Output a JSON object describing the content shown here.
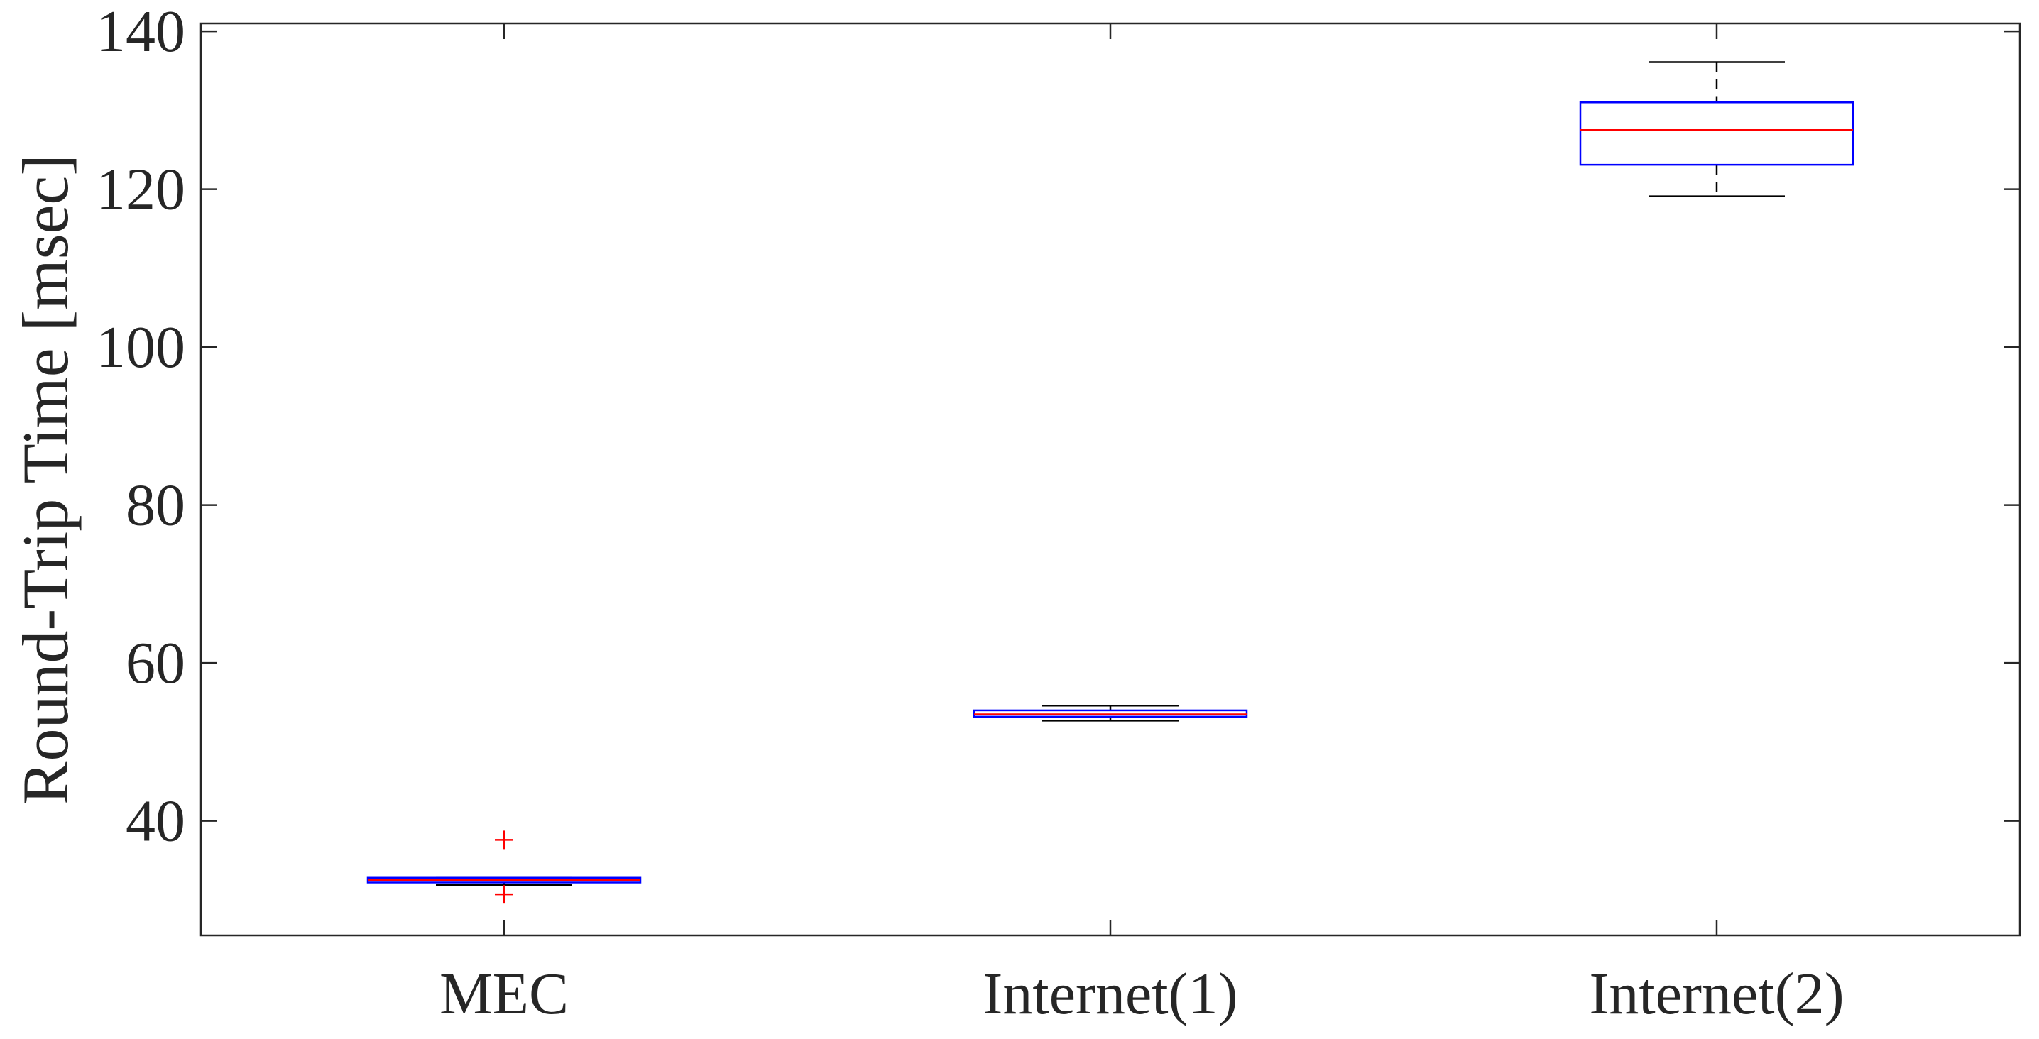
{
  "chart_data": {
    "type": "boxplot",
    "title": "",
    "xlabel": "",
    "ylabel": "Round-Trip Time [msec]",
    "ylim": [
      25.5,
      141
    ],
    "yticks": [
      40,
      60,
      80,
      100,
      120,
      140
    ],
    "grid": false,
    "categories": [
      "MEC",
      "Internet(1)",
      "Internet(2)"
    ],
    "boxes": [
      {
        "category": "MEC",
        "whisker_low": 31.9,
        "q1": 32.2,
        "median": 32.5,
        "q3": 32.8,
        "whisker_high": 32.8,
        "outliers": [
          37.6,
          30.7
        ]
      },
      {
        "category": "Internet(1)",
        "whisker_low": 52.7,
        "q1": 53.2,
        "median": 53.5,
        "q3": 54.0,
        "whisker_high": 54.6,
        "outliers": []
      },
      {
        "category": "Internet(2)",
        "whisker_low": 119.1,
        "q1": 123.1,
        "median": 127.5,
        "q3": 131.0,
        "whisker_high": 136.1,
        "outliers": []
      }
    ],
    "colors": {
      "box": "#0000ff",
      "median": "#ff0000",
      "whisker": "#000000",
      "outlier": "#ff0000",
      "axis": "#262626"
    }
  }
}
